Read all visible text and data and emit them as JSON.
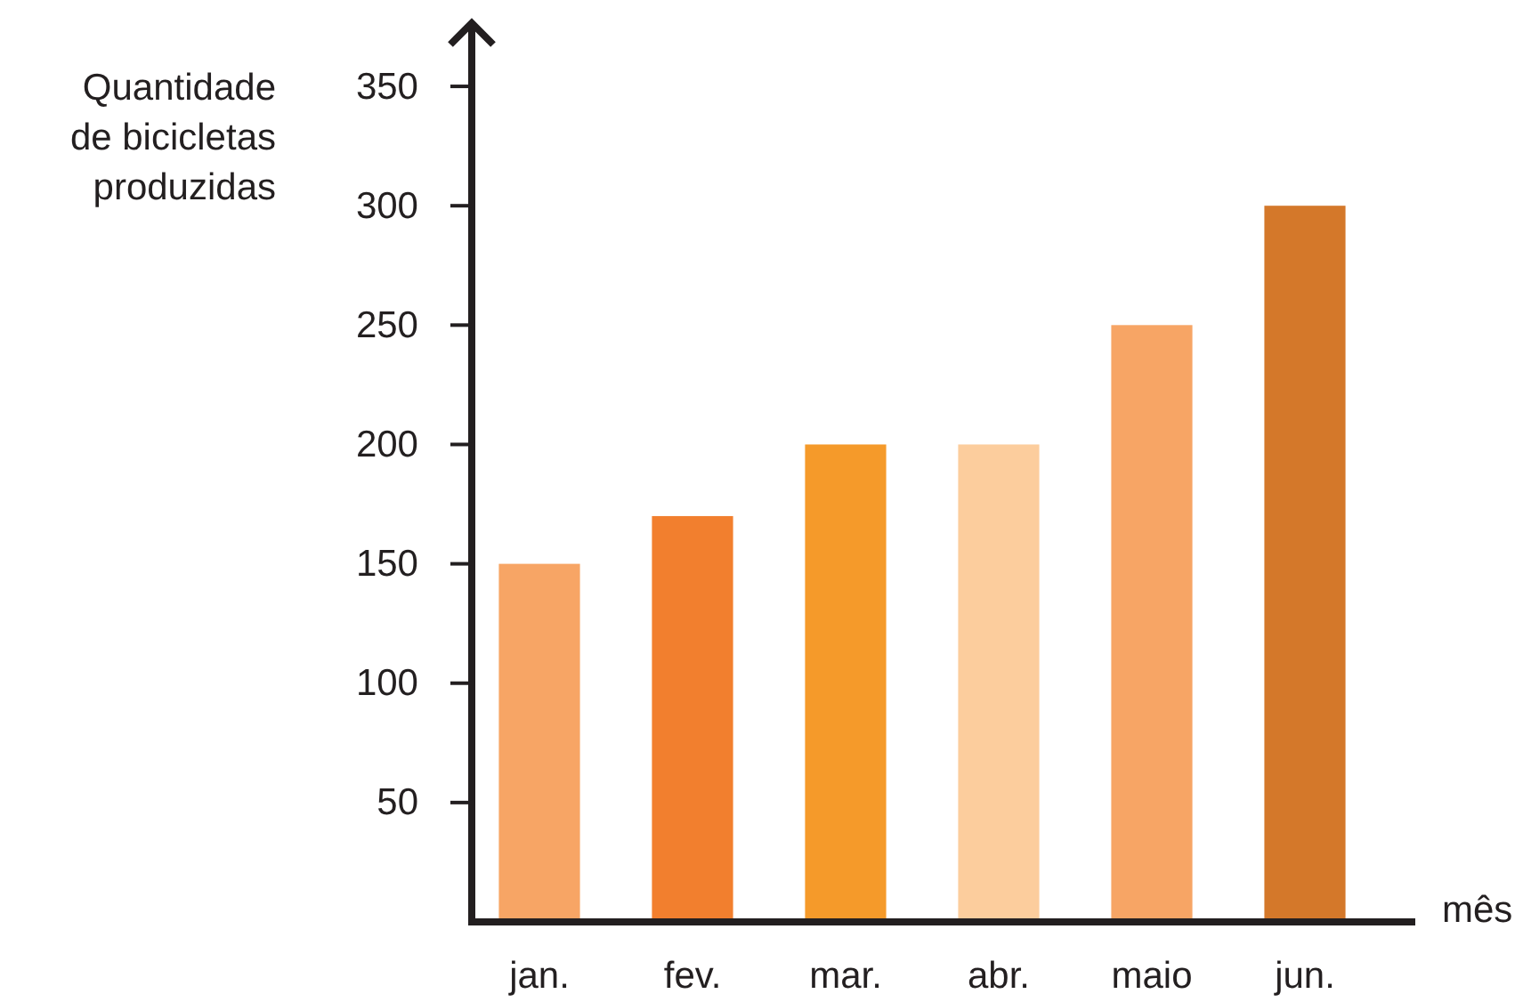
{
  "chart_data": {
    "type": "bar",
    "xlabel": "mês",
    "ylabel": "Quantidade\nde bicicletas\nproduzidas",
    "categories": [
      "jan.",
      "fev.",
      "mar.",
      "abr.",
      "maio",
      "jun."
    ],
    "values": [
      150,
      170,
      200,
      200,
      250,
      300
    ],
    "colors": [
      "#f7a565",
      "#f27f2e",
      "#f59a2a",
      "#fccd9d",
      "#f7a565",
      "#d4782a"
    ],
    "ylim": [
      0,
      375
    ],
    "yticks": [
      50,
      100,
      150,
      200,
      250,
      300,
      350
    ],
    "grid": false
  }
}
